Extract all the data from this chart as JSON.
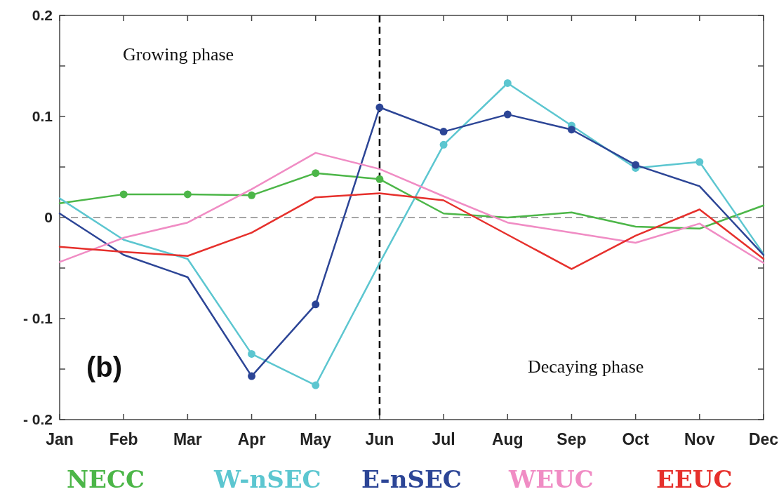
{
  "chart_data": {
    "type": "line",
    "categories": [
      "Jan",
      "Feb",
      "Mar",
      "Apr",
      "May",
      "Jun",
      "Jul",
      "Aug",
      "Sep",
      "Oct",
      "Nov",
      "Dec"
    ],
    "ylim": [
      -0.2,
      0.2
    ],
    "yticks": [
      {
        "value": -0.2,
        "label": "- 0.2"
      },
      {
        "value": -0.15,
        "label": null
      },
      {
        "value": -0.1,
        "label": "- 0.1"
      },
      {
        "value": -0.05,
        "label": null
      },
      0,
      {
        "value": 0.05,
        "label": null
      },
      0.1,
      {
        "value": 0.15,
        "label": null
      },
      0.2
    ],
    "marker": "none",
    "legend": "bottom",
    "grid": false,
    "series": [
      {
        "name": "NECC",
        "color": "#4cb648",
        "values": [
          0.014,
          0.023,
          0.023,
          0.022,
          0.044,
          0.038,
          0.004,
          0,
          0.005,
          -0.009,
          -0.011,
          0.012
        ]
      },
      {
        "name": "W-nSEC",
        "color": "#5cc6d0",
        "values": [
          0.019,
          -0.022,
          -0.041,
          -0.135,
          -0.166,
          -0.045,
          0.072,
          0.133,
          0.091,
          0.049,
          0.055,
          -0.036
        ]
      },
      {
        "name": "E-nSEC",
        "color": "#2c4596",
        "values": [
          0.004,
          -0.037,
          -0.059,
          -0.157,
          -0.086,
          0.109,
          0.085,
          0.102,
          0.087,
          0.052,
          0.031,
          -0.037
        ]
      },
      {
        "name": "WEUC",
        "color": "#f08cc4",
        "values": [
          -0.044,
          -0.02,
          -0.005,
          0.028,
          0.064,
          0.048,
          0.021,
          -0.005,
          -0.015,
          -0.025,
          -0.006,
          -0.045
        ]
      },
      {
        "name": "EEUC",
        "color": "#e6302c",
        "values": [
          -0.029,
          -0.034,
          -0.038,
          -0.015,
          0.02,
          0.024,
          0.017,
          -0.017,
          -0.051,
          -0.018,
          0.008,
          -0.041
        ]
      },
      {
        "type": "scatter",
        "marker": "circle",
        "color": "#4cb648",
        "x": [
          "Feb",
          "Mar",
          "Apr",
          "May",
          "Jun"
        ],
        "values": [
          0.023,
          0.023,
          0.022,
          0.044,
          0.038
        ]
      },
      {
        "type": "scatter",
        "marker": "circle",
        "color": "#5cc6d0",
        "x": [
          "Apr",
          "May",
          "Jul",
          "Aug",
          "Sep",
          "Oct",
          "Nov"
        ],
        "values": [
          -0.135,
          -0.166,
          0.072,
          0.133,
          0.091,
          0.049,
          0.055
        ]
      },
      {
        "type": "scatter",
        "marker": "circle",
        "color": "#2c4596",
        "x": [
          "Apr",
          "May",
          "Jun",
          "Jul",
          "Aug",
          "Sep",
          "Oct"
        ],
        "values": [
          -0.157,
          -0.086,
          0.109,
          0.085,
          0.102,
          0.087,
          0.052
        ]
      }
    ],
    "ref_lines": [
      {
        "axis": "y",
        "value": 0,
        "color": "#888888",
        "line_style": "dashed"
      },
      {
        "axis": "x",
        "value": "Jun",
        "color": "#000000",
        "line_style": "dashed"
      }
    ],
    "annotations": [
      "Growing phase",
      "Decaying phase",
      "(b)"
    ]
  }
}
